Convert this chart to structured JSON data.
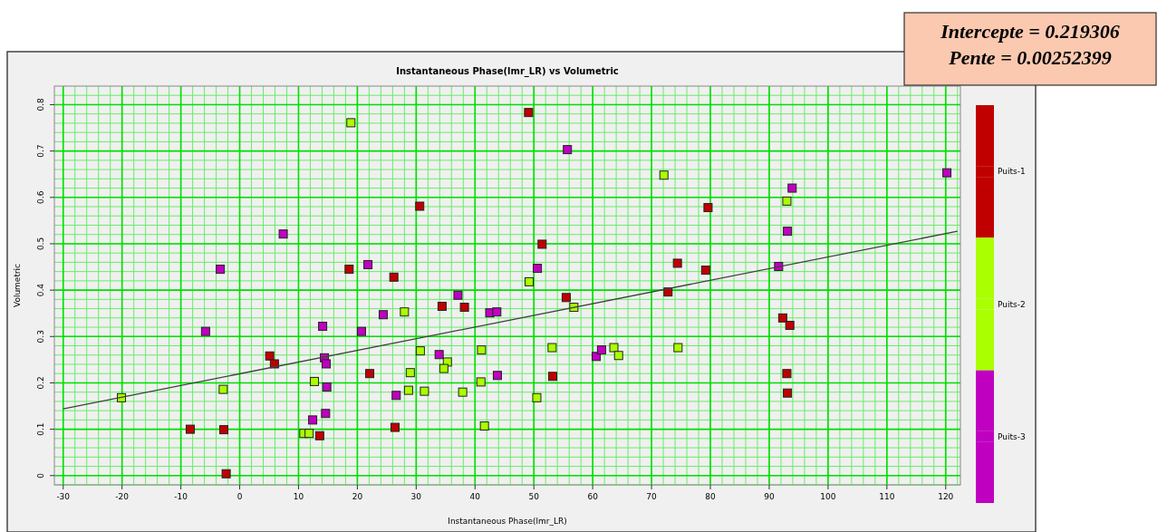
{
  "chart_data": {
    "type": "scatter",
    "title": "Instantaneous Phase(lmr_LR) vs Volumetric",
    "xlabel": "Instantaneous Phase(lmr_LR)",
    "ylabel": "Volumetric",
    "annotations": [
      "Intercepte = 0.219306",
      "Pente = 0.00252399"
    ],
    "xlim": [
      -31.5,
      122.5
    ],
    "ylim": [
      -0.02,
      0.84
    ],
    "xticks": [
      -30,
      -20,
      -10,
      0,
      10,
      20,
      30,
      40,
      50,
      60,
      70,
      80,
      90,
      100,
      110,
      120
    ],
    "yticks": [
      0,
      0.1,
      0.2,
      0.3,
      0.4,
      0.5,
      0.6,
      0.7,
      0.8
    ],
    "grid": true,
    "legend": "right",
    "marker": "square",
    "series": [
      {
        "name": "Puits-1",
        "color": "#c00000",
        "x": [
          -8.4,
          -2.7,
          -2.3,
          5.1,
          5.9,
          13.6,
          18.6,
          49.1,
          30.6,
          51.4,
          26.2,
          34.4,
          38.2,
          55.5,
          22.1,
          53.2,
          26.4,
          79.6,
          74.4,
          79.2,
          72.8,
          92.3,
          93.5,
          93.0,
          93.1
        ],
        "values": [
          0.1,
          0.099,
          0.004,
          0.258,
          0.241,
          0.086,
          0.445,
          0.783,
          0.581,
          0.499,
          0.428,
          0.365,
          0.363,
          0.384,
          0.22,
          0.214,
          0.104,
          0.578,
          0.458,
          0.443,
          0.396,
          0.34,
          0.324,
          0.22,
          0.178
        ]
      },
      {
        "name": "Puits-2",
        "color": "#aaff00",
        "x": [
          -20.1,
          -2.8,
          12.7,
          10.9,
          11.8,
          18.9,
          72.1,
          49.2,
          56.8,
          28.0,
          30.7,
          35.3,
          34.7,
          41.1,
          53.1,
          63.6,
          64.4,
          29.0,
          41.0,
          28.7,
          31.4,
          37.9,
          50.5,
          41.6,
          93.0,
          74.5
        ],
        "values": [
          0.168,
          0.186,
          0.203,
          0.091,
          0.091,
          0.761,
          0.648,
          0.418,
          0.363,
          0.353,
          0.269,
          0.245,
          0.231,
          0.271,
          0.276,
          0.276,
          0.259,
          0.222,
          0.202,
          0.184,
          0.182,
          0.18,
          0.168,
          0.107,
          0.592,
          0.276
        ]
      },
      {
        "name": "Puits-3",
        "color": "#c000c0",
        "x": [
          -5.8,
          -3.3,
          7.4,
          14.1,
          14.4,
          14.7,
          14.8,
          14.6,
          12.4,
          55.7,
          21.8,
          50.6,
          37.1,
          24.4,
          42.5,
          43.7,
          20.7,
          33.9,
          60.6,
          61.5,
          43.8,
          26.6,
          120.2,
          93.9,
          93.1,
          91.6
        ],
        "values": [
          0.311,
          0.445,
          0.521,
          0.322,
          0.254,
          0.241,
          0.191,
          0.134,
          0.12,
          0.703,
          0.455,
          0.447,
          0.389,
          0.347,
          0.351,
          0.353,
          0.311,
          0.261,
          0.257,
          0.271,
          0.216,
          0.173,
          0.653,
          0.62,
          0.527,
          0.451
        ]
      },
      {
        "type": "line",
        "color": "#404040",
        "marker": "none",
        "line_style": "solid",
        "x": [
          -30,
          122
        ],
        "values": [
          0.144,
          0.527
        ]
      }
    ]
  }
}
